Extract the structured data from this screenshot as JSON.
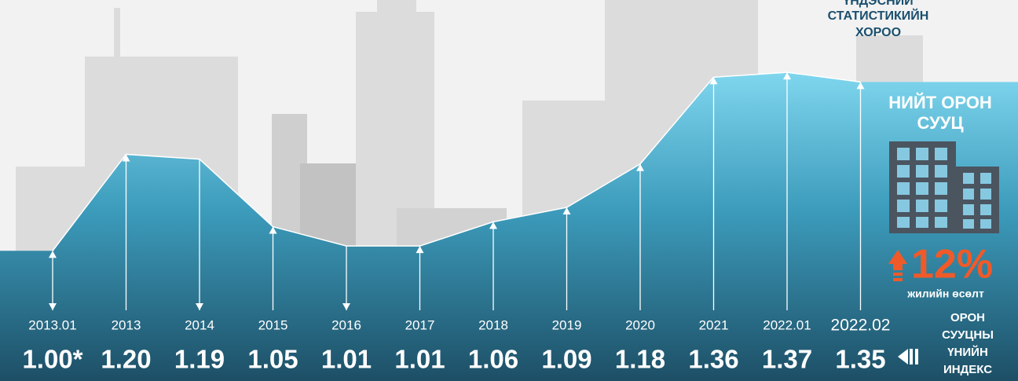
{
  "source": [
    "ҮНДЭСНИЙ",
    "СТАТИСТИКИЙН",
    "ХОРОО"
  ],
  "panel": {
    "title": [
      "НИЙТ ОРОН",
      "СУУЦ"
    ],
    "growth": "12%",
    "growth_caption": "жилийн өсөлт"
  },
  "chart_data": {
    "type": "area",
    "label": [
      "ОРОН",
      "СУУЦНЫ",
      "ҮНИЙН",
      "ИНДЕКС"
    ],
    "categories": [
      "2013.01",
      "2013",
      "2014",
      "2015",
      "2016",
      "2017",
      "2018",
      "2019",
      "2020",
      "2021",
      "2022.01",
      "2022.02"
    ],
    "values": [
      1.0,
      1.2,
      1.19,
      1.05,
      1.01,
      1.01,
      1.06,
      1.09,
      1.18,
      1.36,
      1.37,
      1.35
    ],
    "value_labels": [
      "1.00*",
      "1.20",
      "1.19",
      "1.05",
      "1.01",
      "1.01",
      "1.06",
      "1.09",
      "1.18",
      "1.36",
      "1.37",
      "1.35"
    ],
    "ylim": [
      0.73,
      1.52
    ]
  }
}
